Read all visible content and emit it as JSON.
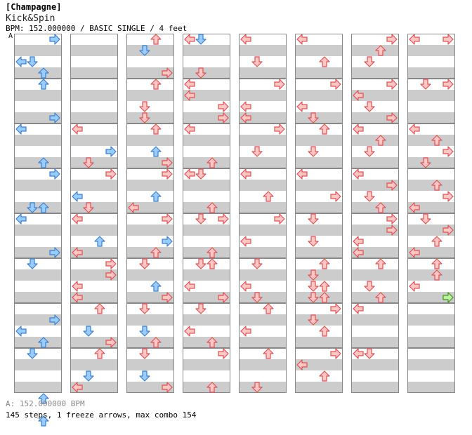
{
  "header": {
    "group": "[Champagne]",
    "title": "Kick&Spin",
    "info": "BPM: 152.000000 / BASIC SINGLE / 4 feet",
    "bpm_marker": "A"
  },
  "footer": {
    "bpm_legend": "A: 152.000000 BPM",
    "stats": "145 steps, 1 freeze arrows, max combo 154"
  },
  "colors": {
    "stripe": "#cccccc",
    "border": "#888888",
    "arrow_red_fill": "#ffc6c6",
    "arrow_red_stroke": "#e05050",
    "arrow_blue_fill": "#99ccff",
    "arrow_blue_stroke": "#3a7fd0",
    "arrow_green_fill": "#bff0a0",
    "arrow_green_stroke": "#3aa020"
  },
  "lanes": [
    "left",
    "down",
    "up",
    "right"
  ],
  "columns": [
    [
      [
        [
          0,
          3,
          "b"
        ],
        [
          2,
          1,
          "b"
        ],
        [
          3,
          2,
          "b"
        ],
        [
          2,
          0,
          "b"
        ]
      ],
      [
        [
          0,
          2,
          "b"
        ],
        [
          3,
          3,
          "b"
        ]
      ],
      [
        [
          0,
          0,
          "b"
        ],
        [
          3,
          2,
          "b"
        ],
        [
          6,
          2,
          "b"
        ]
      ],
      [
        [
          0,
          3,
          "b"
        ],
        [
          3,
          1,
          "b"
        ],
        [
          3,
          2,
          "b"
        ]
      ],
      [
        [
          0,
          0,
          "b"
        ],
        [
          3,
          3,
          "b"
        ],
        [
          4,
          1,
          "b"
        ],
        [
          6,
          1,
          "b"
        ],
        [
          7,
          1,
          "b"
        ]
      ],
      [
        [
          0,
          1,
          "b"
        ],
        [
          4,
          0,
          "b"
        ]
      ],
      [
        [
          1,
          3,
          "b"
        ],
        [
          2,
          0,
          "b"
        ],
        [
          3,
          2,
          "b"
        ]
      ],
      [
        [
          0,
          1,
          "b"
        ],
        [
          4,
          2,
          "b"
        ],
        [
          6,
          2,
          "b"
        ]
      ]
    ],
    [
      [],
      [],
      [
        [
          0,
          0,
          "r"
        ],
        [
          2,
          3,
          "b"
        ],
        [
          3,
          1,
          "r"
        ]
      ],
      [
        [
          0,
          3,
          "r"
        ],
        [
          2,
          0,
          "b"
        ],
        [
          3,
          1,
          "r"
        ]
      ],
      [
        [
          0,
          0,
          "r"
        ],
        [
          2,
          2,
          "b"
        ],
        [
          3,
          0,
          "r"
        ]
      ],
      [
        [
          0,
          3,
          "r"
        ],
        [
          1,
          3,
          "r"
        ],
        [
          2,
          0,
          "r"
        ],
        [
          3,
          0,
          "r"
        ]
      ],
      [
        [
          0,
          2,
          "r"
        ],
        [
          2,
          1,
          "b"
        ],
        [
          3,
          3,
          "r"
        ]
      ],
      [
        [
          0,
          2,
          "r"
        ],
        [
          2,
          1,
          "b"
        ],
        [
          3,
          0,
          "r"
        ]
      ]
    ],
    [
      [
        [
          0,
          2,
          "r"
        ],
        [
          1,
          1,
          "b"
        ],
        [
          3,
          3,
          "r"
        ]
      ],
      [
        [
          0,
          2,
          "r"
        ],
        [
          2,
          1,
          "r"
        ],
        [
          3,
          1,
          "r"
        ]
      ],
      [
        [
          0,
          2,
          "r"
        ],
        [
          2,
          2,
          "b"
        ],
        [
          3,
          3,
          "r"
        ]
      ],
      [
        [
          0,
          3,
          "r"
        ],
        [
          2,
          2,
          "b"
        ],
        [
          3,
          0,
          "r"
        ]
      ],
      [
        [
          0,
          3,
          "r"
        ],
        [
          2,
          3,
          "b"
        ],
        [
          3,
          2,
          "r"
        ]
      ],
      [
        [
          0,
          1,
          "r"
        ],
        [
          2,
          2,
          "b"
        ],
        [
          3,
          3,
          "r"
        ]
      ],
      [
        [
          0,
          1,
          "r"
        ],
        [
          2,
          1,
          "b"
        ],
        [
          3,
          2,
          "r"
        ]
      ],
      [
        [
          0,
          1,
          "r"
        ],
        [
          2,
          1,
          "b"
        ],
        [
          3,
          3,
          "r"
        ]
      ]
    ],
    [
      [
        [
          0,
          0,
          "r"
        ],
        [
          0,
          1,
          "b"
        ],
        [
          3,
          1,
          "r"
        ]
      ],
      [
        [
          0,
          0,
          "r"
        ],
        [
          1,
          0,
          "r"
        ],
        [
          2,
          3,
          "r"
        ],
        [
          3,
          3,
          "r"
        ]
      ],
      [
        [
          0,
          0,
          "r"
        ],
        [
          3,
          2,
          "r"
        ]
      ],
      [
        [
          0,
          0,
          "r"
        ],
        [
          0,
          1,
          "r"
        ],
        [
          3,
          2,
          "r"
        ]
      ],
      [
        [
          0,
          1,
          "r"
        ],
        [
          0,
          3,
          "r"
        ],
        [
          3,
          2,
          "r"
        ]
      ],
      [
        [
          0,
          1,
          "r"
        ],
        [
          0,
          2,
          "r"
        ],
        [
          2,
          0,
          "r"
        ],
        [
          3,
          3,
          "r"
        ]
      ],
      [
        [
          0,
          1,
          "r"
        ],
        [
          2,
          0,
          "r"
        ],
        [
          3,
          2,
          "r"
        ]
      ],
      [
        [
          0,
          3,
          "r"
        ],
        [
          3,
          2,
          "r"
        ]
      ]
    ],
    [
      [
        [
          0,
          0,
          "r"
        ],
        [
          2,
          1,
          "r"
        ]
      ],
      [
        [
          0,
          3,
          "r"
        ],
        [
          2,
          0,
          "r"
        ],
        [
          3,
          0,
          "r"
        ]
      ],
      [
        [
          0,
          3,
          "r"
        ],
        [
          2,
          1,
          "r"
        ]
      ],
      [
        [
          0,
          0,
          "r"
        ],
        [
          2,
          2,
          "r"
        ]
      ],
      [
        [
          0,
          3,
          "r"
        ],
        [
          2,
          0,
          "r"
        ]
      ],
      [
        [
          0,
          1,
          "r"
        ],
        [
          2,
          0,
          "r"
        ],
        [
          3,
          1,
          "r"
        ]
      ],
      [
        [
          0,
          2,
          "r"
        ],
        [
          2,
          0,
          "r"
        ]
      ],
      [
        [
          0,
          2,
          "r"
        ],
        [
          3,
          1,
          "r"
        ]
      ]
    ],
    [
      [
        [
          0,
          0,
          "r"
        ],
        [
          2,
          2,
          "r"
        ]
      ],
      [
        [
          0,
          3,
          "r"
        ],
        [
          2,
          0,
          "r"
        ],
        [
          3,
          1,
          "r"
        ]
      ],
      [
        [
          0,
          2,
          "r"
        ],
        [
          2,
          1,
          "r"
        ]
      ],
      [
        [
          0,
          0,
          "r"
        ],
        [
          2,
          3,
          "r"
        ]
      ],
      [
        [
          0,
          1,
          "r"
        ],
        [
          2,
          1,
          "r"
        ]
      ],
      [
        [
          0,
          2,
          "r"
        ],
        [
          1,
          1,
          "r"
        ],
        [
          2,
          1,
          "r"
        ],
        [
          2,
          2,
          "r"
        ],
        [
          3,
          1,
          "r"
        ],
        [
          3,
          2,
          "r"
        ]
      ],
      [
        [
          0,
          3,
          "r"
        ],
        [
          1,
          1,
          "r"
        ],
        [
          2,
          2,
          "r"
        ]
      ],
      [
        [
          0,
          3,
          "r"
        ],
        [
          1,
          0,
          "r"
        ],
        [
          2,
          2,
          "r"
        ]
      ]
    ],
    [
      [
        [
          0,
          3,
          "r"
        ],
        [
          1,
          2,
          "r"
        ],
        [
          2,
          1,
          "r"
        ]
      ],
      [
        [
          0,
          3,
          "r"
        ],
        [
          1,
          0,
          "r"
        ],
        [
          2,
          1,
          "r"
        ],
        [
          3,
          3,
          "r"
        ]
      ],
      [
        [
          0,
          0,
          "r"
        ],
        [
          1,
          2,
          "r"
        ],
        [
          2,
          1,
          "r"
        ]
      ],
      [
        [
          0,
          0,
          "r"
        ],
        [
          1,
          3,
          "r"
        ],
        [
          2,
          1,
          "r"
        ],
        [
          3,
          2,
          "r"
        ]
      ],
      [
        [
          0,
          3,
          "r"
        ],
        [
          1,
          3,
          "r"
        ],
        [
          2,
          0,
          "r"
        ],
        [
          3,
          0,
          "r"
        ]
      ],
      [
        [
          0,
          2,
          "r"
        ],
        [
          2,
          1,
          "r"
        ],
        [
          3,
          2,
          "r"
        ]
      ],
      [
        [
          0,
          0,
          "r"
        ]
      ],
      [
        [
          0,
          0,
          "r"
        ],
        [
          0,
          1,
          "r"
        ]
      ]
    ],
    [
      [
        [
          0,
          0,
          "r"
        ],
        [
          0,
          3,
          "r"
        ]
      ],
      [
        [
          0,
          1,
          "r"
        ],
        [
          0,
          3,
          "r"
        ]
      ],
      [
        [
          0,
          0,
          "r"
        ],
        [
          1,
          2,
          "r"
        ],
        [
          2,
          3,
          "r"
        ],
        [
          3,
          1,
          "r"
        ]
      ],
      [
        [
          1,
          2,
          "r"
        ],
        [
          2,
          3,
          "r"
        ],
        [
          3,
          0,
          "r"
        ]
      ],
      [
        [
          0,
          1,
          "r"
        ],
        [
          1,
          3,
          "r"
        ],
        [
          2,
          2,
          "r"
        ],
        [
          3,
          0,
          "r"
        ]
      ],
      [
        [
          0,
          2,
          "r"
        ],
        [
          1,
          2,
          "r"
        ],
        [
          2,
          0,
          "r"
        ],
        [
          3,
          3,
          "r"
        ],
        [
          3,
          3,
          "g"
        ]
      ],
      [],
      []
    ]
  ]
}
